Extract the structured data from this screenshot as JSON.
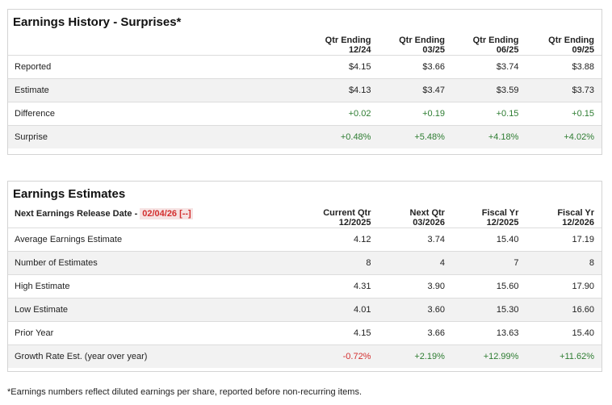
{
  "history": {
    "title": "Earnings History - Surprises*",
    "columns": [
      {
        "line1": "Qtr Ending",
        "line2": "12/24"
      },
      {
        "line1": "Qtr Ending",
        "line2": "03/25"
      },
      {
        "line1": "Qtr Ending",
        "line2": "06/25"
      },
      {
        "line1": "Qtr Ending",
        "line2": "09/25"
      }
    ],
    "rows": [
      {
        "label": "Reported",
        "values": [
          "$4.15",
          "$3.66",
          "$3.74",
          "$3.88"
        ]
      },
      {
        "label": "Estimate",
        "values": [
          "$4.13",
          "$3.47",
          "$3.59",
          "$3.73"
        ]
      },
      {
        "label": "Difference",
        "values": [
          "+0.02",
          "+0.19",
          "+0.15",
          "+0.15"
        ]
      },
      {
        "label": "Surprise",
        "values": [
          "+0.48%",
          "+5.48%",
          "+4.18%",
          "+4.02%"
        ]
      }
    ]
  },
  "estimates": {
    "title": "Earnings Estimates",
    "release_label": "Next Earnings Release Date -",
    "release_date": "02/04/26",
    "release_link": "[--]",
    "columns": [
      {
        "line1": "Current Qtr",
        "line2": "12/2025"
      },
      {
        "line1": "Next Qtr",
        "line2": "03/2026"
      },
      {
        "line1": "Fiscal Yr",
        "line2": "12/2025"
      },
      {
        "line1": "Fiscal Yr",
        "line2": "12/2026"
      }
    ],
    "rows": [
      {
        "label": "Average Earnings Estimate",
        "values": [
          "4.12",
          "3.74",
          "15.40",
          "17.19"
        ]
      },
      {
        "label": "Number of Estimates",
        "values": [
          "8",
          "4",
          "7",
          "8"
        ]
      },
      {
        "label": "High Estimate",
        "values": [
          "4.31",
          "3.90",
          "15.60",
          "17.90"
        ]
      },
      {
        "label": "Low Estimate",
        "values": [
          "4.01",
          "3.60",
          "15.30",
          "16.60"
        ]
      },
      {
        "label": "Prior Year",
        "values": [
          "4.15",
          "3.66",
          "13.63",
          "15.40"
        ]
      },
      {
        "label": "Growth Rate Est. (year over year)",
        "values": [
          "-0.72%",
          "+2.19%",
          "+12.99%",
          "+11.62%"
        ]
      }
    ]
  },
  "footnote": "*Earnings numbers reflect diluted earnings per share, reported before non-recurring items.",
  "colors": {
    "positive": "#2e7d32",
    "negative": "#d32f2f",
    "alt_row": "#f2f2f2",
    "border": "#d4d4d4"
  }
}
